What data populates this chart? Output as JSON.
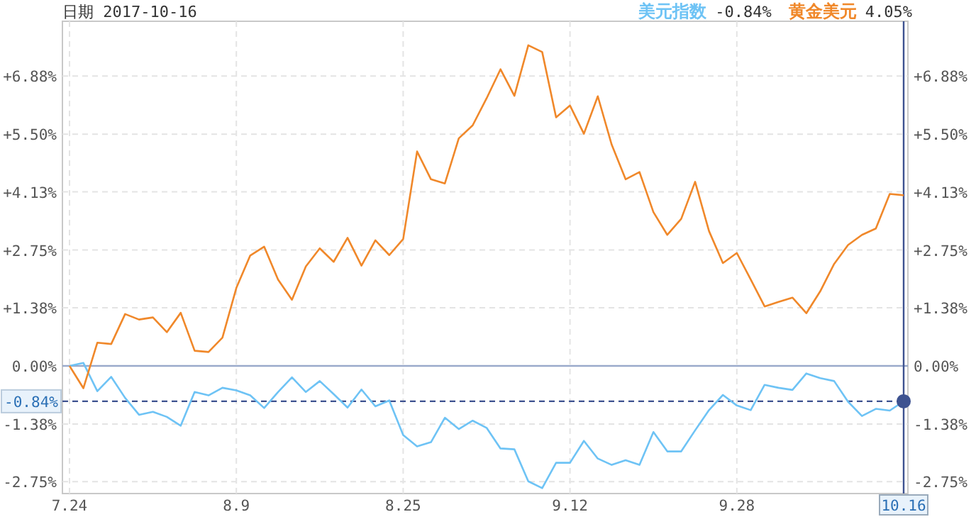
{
  "chart_data": {
    "type": "line",
    "title": "日期 2017-10-16",
    "categories": [
      "7.24",
      null,
      null,
      null,
      null,
      null,
      null,
      null,
      null,
      null,
      null,
      null,
      "8.9",
      null,
      null,
      null,
      null,
      null,
      null,
      null,
      null,
      null,
      null,
      null,
      "8.25",
      null,
      null,
      null,
      null,
      null,
      null,
      null,
      null,
      null,
      null,
      null,
      "9.12",
      null,
      null,
      null,
      null,
      null,
      null,
      null,
      null,
      null,
      null,
      null,
      "9.28",
      null,
      null,
      null,
      null,
      null,
      null,
      null,
      null,
      null,
      null,
      null,
      "10.16"
    ],
    "series": [
      {
        "name": "美元指数",
        "color": "#6ec3f5",
        "values": [
          0,
          0.07,
          -0.6,
          -0.26,
          -0.76,
          -1.16,
          -1.09,
          -1.21,
          -1.42,
          -0.62,
          -0.7,
          -0.52,
          -0.58,
          -0.7,
          -1.0,
          -0.62,
          -0.27,
          -0.62,
          -0.36,
          -0.67,
          -0.99,
          -0.56,
          -0.96,
          -0.82,
          -1.64,
          -1.91,
          -1.81,
          -1.23,
          -1.5,
          -1.3,
          -1.47,
          -1.96,
          -1.98,
          -2.74,
          -2.9,
          -2.3,
          -2.3,
          -1.78,
          -2.2,
          -2.35,
          -2.24,
          -2.35,
          -1.57,
          -2.03,
          -2.03,
          -1.53,
          -1.05,
          -0.69,
          -0.94,
          -1.05,
          -0.45,
          -0.52,
          -0.57,
          -0.18,
          -0.29,
          -0.36,
          -0.85,
          -1.19,
          -1.02,
          -1.06,
          -0.84
        ]
      },
      {
        "name": "黄金美元",
        "color": "#f0882a",
        "values": [
          0,
          -0.53,
          0.55,
          0.52,
          1.23,
          1.1,
          1.15,
          0.8,
          1.26,
          0.36,
          0.33,
          0.67,
          1.85,
          2.62,
          2.83,
          2.05,
          1.57,
          2.36,
          2.79,
          2.47,
          3.04,
          2.38,
          2.98,
          2.63,
          3.01,
          5.09,
          4.43,
          4.33,
          5.4,
          5.71,
          6.35,
          7.04,
          6.41,
          7.61,
          7.45,
          5.9,
          6.18,
          5.51,
          6.4,
          5.25,
          4.43,
          4.6,
          3.65,
          3.11,
          3.49,
          4.37,
          3.2,
          2.44,
          2.68,
          2.05,
          1.41,
          1.52,
          1.62,
          1.25,
          1.77,
          2.42,
          2.87,
          3.11,
          3.26,
          4.08,
          4.05
        ]
      }
    ],
    "annotations": [
      "-0.84%",
      "4.05%"
    ],
    "ylim": [
      -3.03,
      8.18
    ],
    "yticks": [
      {
        "value": 6.88,
        "label": "+6.88%"
      },
      {
        "value": 5.5,
        "label": "+5.50%"
      },
      {
        "value": 4.13,
        "label": "+4.13%"
      },
      {
        "value": 2.75,
        "label": "+2.75%"
      },
      {
        "value": 1.38,
        "label": "+1.38%"
      },
      {
        "value": 0,
        "label": "0.00%"
      },
      {
        "value": -1.38,
        "label": "-1.38%"
      },
      {
        "value": -2.75,
        "label": "-2.75%"
      }
    ],
    "y2lim": [
      -3.03,
      8.18
    ],
    "y2ticks": [
      {
        "value": 6.88,
        "label": "+6.88%"
      },
      {
        "value": 5.5,
        "label": "+5.50%"
      },
      {
        "value": 4.13,
        "label": "+4.13%"
      },
      {
        "value": 2.75,
        "label": "+2.75%"
      },
      {
        "value": 1.38,
        "label": "+1.38%"
      },
      {
        "value": 0,
        "label": "0.00%"
      },
      {
        "value": -1.38,
        "label": "-1.38%"
      },
      {
        "value": -2.75,
        "label": "-2.75%"
      }
    ],
    "ref_lines": [
      {
        "axis": "y",
        "value": 0,
        "color": "#9aaacb",
        "line_style": "solid"
      },
      {
        "axis": "y",
        "value": -0.84,
        "label": "-0.84%",
        "color": "#3d5290",
        "line_style": "dashed"
      },
      {
        "axis": "x",
        "value": "10.16",
        "color": "#3d5290",
        "line_style": "solid"
      }
    ],
    "grid": true,
    "legend": "top",
    "marker": "none",
    "line_style": "solid"
  }
}
